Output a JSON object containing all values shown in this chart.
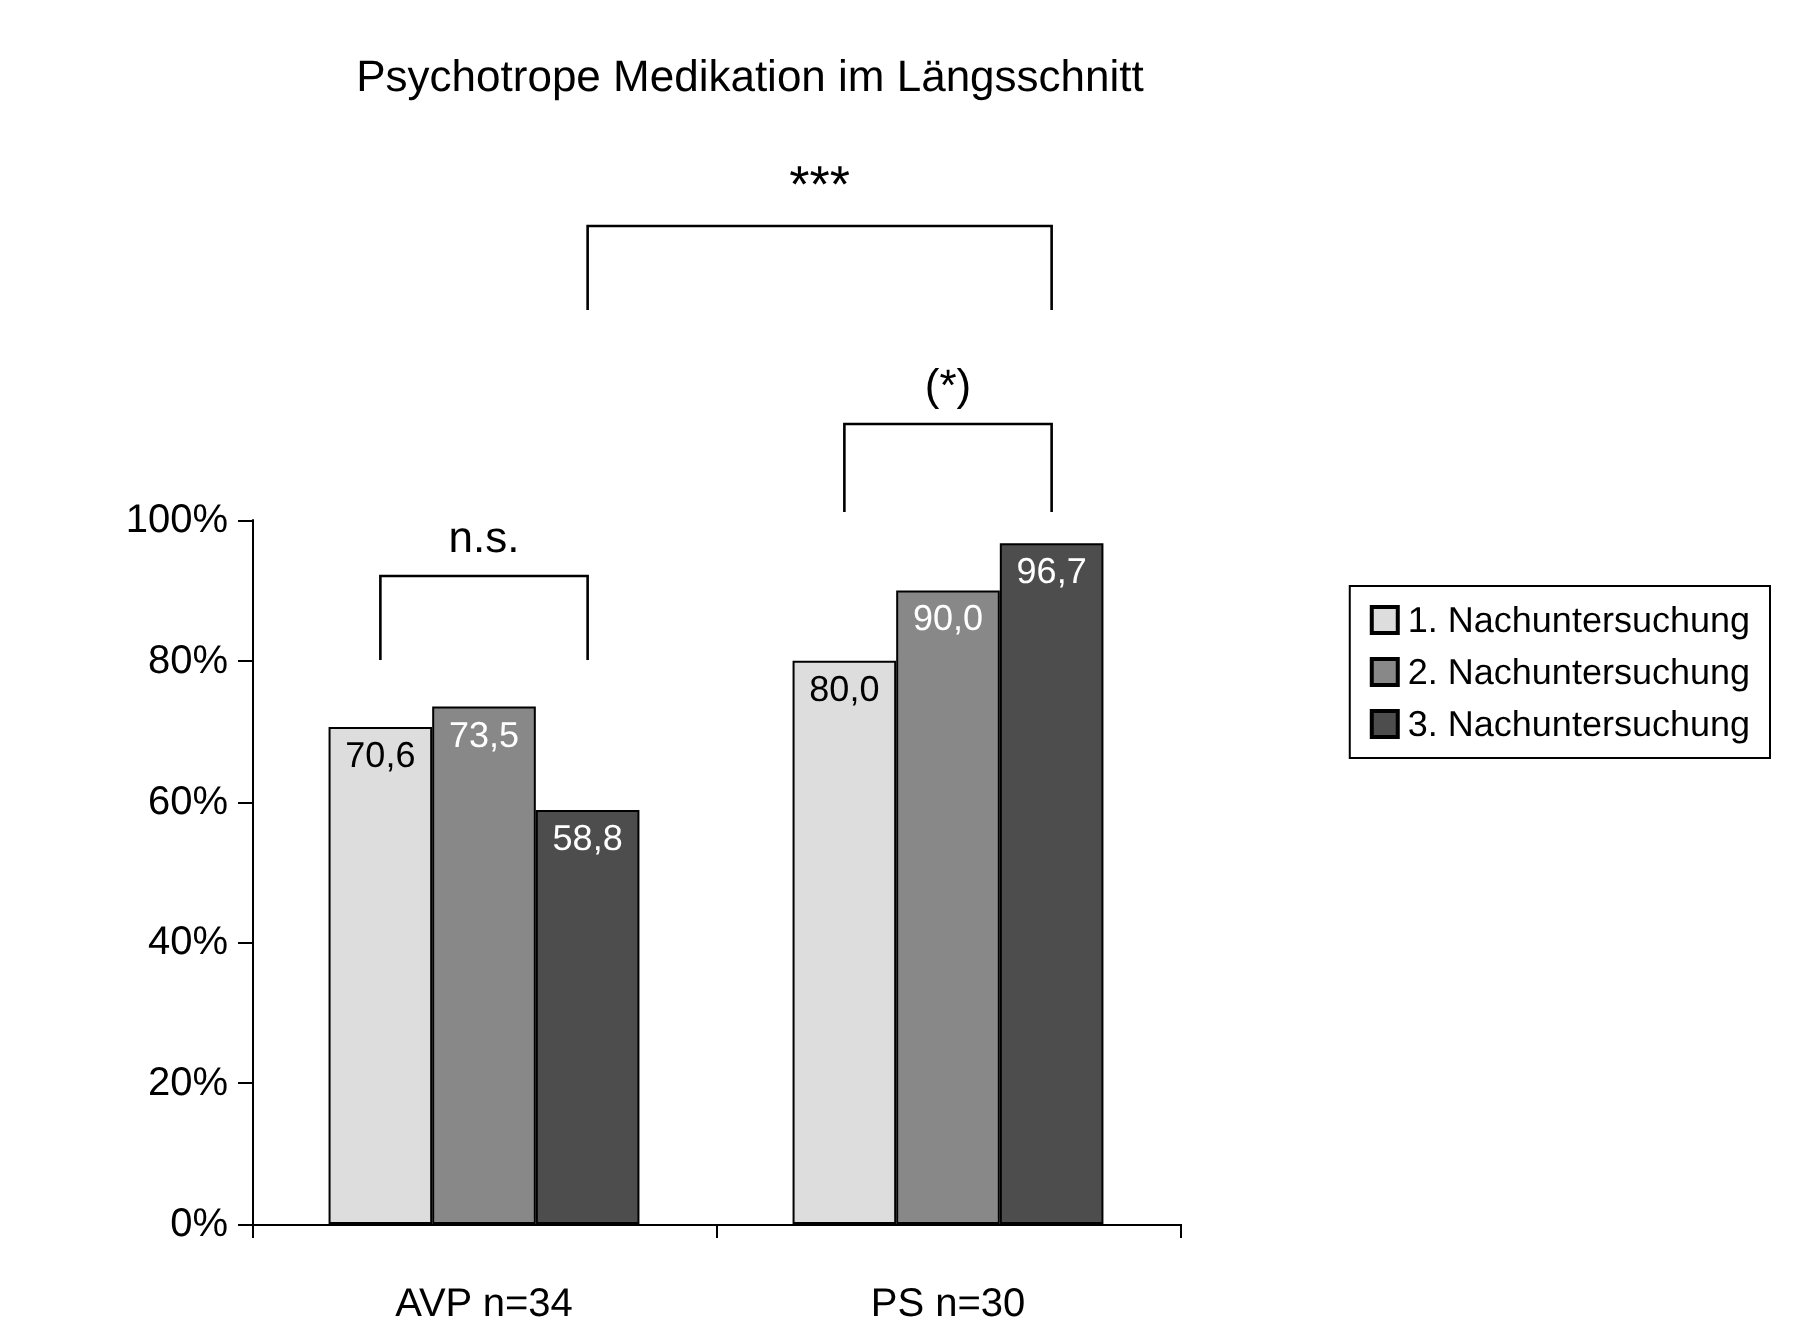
{
  "chart_data": {
    "type": "bar",
    "title": "Psychotrope Medikation im Längsschnitt",
    "categories": [
      "AVP n=34",
      "PS n=30"
    ],
    "series": [
      {
        "name": "1. Nachuntersuchung",
        "color": "#dddddd",
        "values": [
          70.6,
          80.0
        ],
        "value_labels": [
          "70,6",
          "80,0"
        ]
      },
      {
        "name": "2. Nachuntersuchung",
        "color": "#888888",
        "values": [
          73.5,
          90.0
        ],
        "value_labels": [
          "73,5",
          "90,0"
        ]
      },
      {
        "name": "3. Nachuntersuchung",
        "color": "#4d4d4d",
        "values": [
          58.8,
          96.7
        ],
        "value_labels": [
          "58,8",
          "96,7"
        ]
      }
    ],
    "ylim": [
      0,
      100
    ],
    "yticks": [
      {
        "value": 0,
        "label": "0%"
      },
      {
        "value": 20,
        "label": "20%"
      },
      {
        "value": 40,
        "label": "40%"
      },
      {
        "value": 60,
        "label": "60%"
      },
      {
        "value": 80,
        "label": "80%"
      },
      {
        "value": 100,
        "label": "100%"
      }
    ],
    "grid": false,
    "legend": "right",
    "annotations": [
      "n.s.",
      "(*)",
      "***"
    ]
  }
}
